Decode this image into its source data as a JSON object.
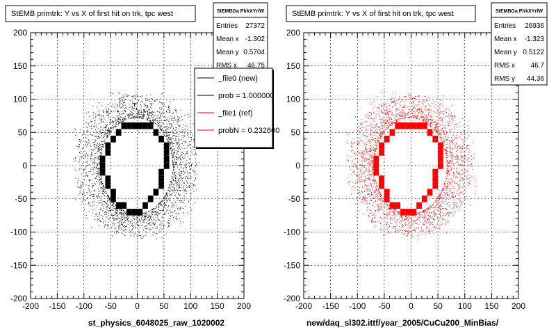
{
  "colors": {
    "black": "#000000",
    "red": "#ff0000",
    "frame": "#000000",
    "grid": "#000000",
    "footer": "#666666"
  },
  "footer_text": "",
  "chart_data": [
    {
      "type": "scatter",
      "title": "StEMB primtrk: Y vs X of first hit on trk, tpc west",
      "xlabel": "st_physics_6048025_raw_1020002",
      "ylabel": "",
      "xlim": [
        -200,
        200
      ],
      "ylim": [
        -200,
        200
      ],
      "x_ticks": [
        -200,
        -150,
        -100,
        -50,
        0,
        50,
        100,
        150,
        200
      ],
      "y_ticks": [
        -200,
        -150,
        -100,
        -50,
        0,
        50,
        100,
        150,
        200
      ],
      "grid": true,
      "marker_color": "#000000",
      "stats": {
        "name": "StEMBGa PlrkXYrfW",
        "rows": [
          {
            "label": "Entries",
            "value": "27372"
          },
          {
            "label": "Mean x",
            "value": "-1.302"
          },
          {
            "label": "Mean y",
            "value": "0.5704"
          },
          {
            "label": "RMS x",
            "value": "46.75"
          }
        ]
      },
      "legend": {
        "placement": "top-right",
        "entries": [
          {
            "label": "_file0 (new)",
            "color": "#000000"
          },
          {
            "label": "prob = 1.000000",
            "color": "#000000"
          },
          {
            "label": "_file1 (ref)",
            "color": "#ff0000"
          },
          {
            "label": "probN = 0.232600",
            "color": "#ff0000"
          }
        ]
      },
      "ring_bins": [
        [
          -25,
          60
        ],
        [
          -15,
          60
        ],
        [
          -5,
          60
        ],
        [
          5,
          60
        ],
        [
          15,
          60
        ],
        [
          25,
          60
        ],
        [
          -35,
          50
        ],
        [
          35,
          50
        ],
        [
          -45,
          40
        ],
        [
          45,
          40
        ],
        [
          -55,
          30
        ],
        [
          55,
          30
        ],
        [
          -55,
          20
        ],
        [
          55,
          20
        ],
        [
          -65,
          10
        ],
        [
          55,
          10
        ],
        [
          -65,
          0
        ],
        [
          55,
          0
        ],
        [
          -65,
          -10
        ],
        [
          45,
          -10
        ],
        [
          -55,
          -20
        ],
        [
          45,
          -20
        ],
        [
          -55,
          -30
        ],
        [
          45,
          -30
        ],
        [
          -45,
          -40
        ],
        [
          35,
          -40
        ],
        [
          -45,
          -50
        ],
        [
          25,
          -50
        ],
        [
          -35,
          -60
        ],
        [
          -25,
          -60
        ],
        [
          15,
          -60
        ],
        [
          -15,
          -70
        ],
        [
          -5,
          -70
        ],
        [
          5,
          -70
        ]
      ]
    },
    {
      "type": "scatter",
      "title": "StEMB primtrk: Y vs X of first hit on trk, tpc west",
      "xlabel": "new/daq_sl302.ittf/year_2005/CuCu200_MinBias/",
      "ylabel": "",
      "xlim": [
        -200,
        200
      ],
      "ylim": [
        -200,
        200
      ],
      "x_ticks": [
        -200,
        -150,
        -100,
        -50,
        0,
        50,
        100,
        150,
        200
      ],
      "y_ticks": [
        -200,
        -150,
        -100,
        -50,
        0,
        50,
        100,
        150,
        200
      ],
      "grid": true,
      "marker_color": "#ff0000",
      "stats": {
        "name": "StEMBGa PlrkXYrfW",
        "rows": [
          {
            "label": "Entries",
            "value": "26936"
          },
          {
            "label": "Mean x",
            "value": "-1.323"
          },
          {
            "label": "Mean y",
            "value": "0.5122"
          },
          {
            "label": "RMS x",
            "value": "46.7"
          },
          {
            "label": "RMS y",
            "value": "44.36"
          }
        ]
      },
      "ring_bins": [
        [
          -25,
          60
        ],
        [
          -15,
          60
        ],
        [
          -5,
          60
        ],
        [
          5,
          60
        ],
        [
          15,
          60
        ],
        [
          25,
          60
        ],
        [
          -35,
          50
        ],
        [
          35,
          50
        ],
        [
          -45,
          40
        ],
        [
          45,
          40
        ],
        [
          -55,
          30
        ],
        [
          55,
          30
        ],
        [
          -55,
          20
        ],
        [
          55,
          20
        ],
        [
          -65,
          10
        ],
        [
          55,
          10
        ],
        [
          -65,
          0
        ],
        [
          55,
          0
        ],
        [
          -65,
          -10
        ],
        [
          45,
          -10
        ],
        [
          -55,
          -20
        ],
        [
          45,
          -20
        ],
        [
          -55,
          -30
        ],
        [
          45,
          -30
        ],
        [
          -45,
          -40
        ],
        [
          35,
          -40
        ],
        [
          -45,
          -50
        ],
        [
          25,
          -50
        ],
        [
          -35,
          -60
        ],
        [
          -25,
          -60
        ],
        [
          15,
          -60
        ],
        [
          -15,
          -70
        ],
        [
          -5,
          -70
        ],
        [
          5,
          -70
        ]
      ]
    }
  ]
}
